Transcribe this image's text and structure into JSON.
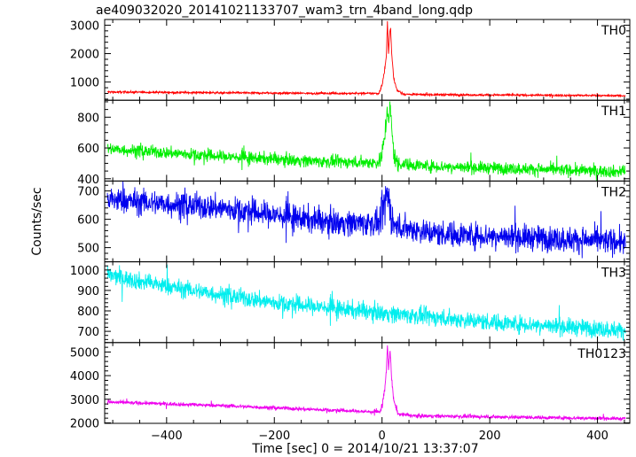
{
  "chart_data": {
    "type": "line",
    "title": "ae409032020_20141021133707_wam3_trn_4band_long.qdp",
    "xlabel": "Time [sec] 0 = 2014/10/21 13:37:07",
    "ylabel": "Counts/sec",
    "xlim": [
      -515,
      460
    ],
    "x_ticks": [
      "−400",
      "−200",
      "0",
      "200",
      "400"
    ],
    "x_tick_values": [
      -400,
      -200,
      0,
      200,
      400
    ],
    "grid": false,
    "panels": [
      {
        "name": "TH0",
        "color": "#ff0000",
        "ylim": [
          360,
          3200
        ],
        "y_ticks": [
          1000,
          2000,
          3000
        ],
        "baseline": [
          [
            -510,
            650
          ],
          [
            -100,
            600
          ],
          [
            0,
            600
          ],
          [
            60,
            560
          ],
          [
            450,
            520
          ]
        ],
        "noise": 25,
        "burst": [
          [
            -5,
            650
          ],
          [
            0,
            900
          ],
          [
            4,
            1300
          ],
          [
            8,
            1900
          ],
          [
            10,
            3150
          ],
          [
            12,
            2000
          ],
          [
            14,
            2600
          ],
          [
            16,
            2900
          ],
          [
            18,
            2000
          ],
          [
            22,
            1100
          ],
          [
            28,
            700
          ],
          [
            40,
            600
          ]
        ]
      },
      {
        "name": "TH1",
        "color": "#00ee00",
        "ylim": [
          385,
          910
        ],
        "y_ticks": [
          400,
          600,
          800
        ],
        "baseline": [
          [
            -510,
            595
          ],
          [
            -300,
            545
          ],
          [
            -100,
            510
          ],
          [
            0,
            505
          ],
          [
            100,
            480
          ],
          [
            450,
            445
          ]
        ],
        "noise": 28,
        "burst": [
          [
            -5,
            510
          ],
          [
            0,
            560
          ],
          [
            5,
            680
          ],
          [
            10,
            860
          ],
          [
            13,
            760
          ],
          [
            15,
            880
          ],
          [
            18,
            720
          ],
          [
            22,
            560
          ],
          [
            30,
            490
          ]
        ]
      },
      {
        "name": "TH2",
        "color": "#0000ee",
        "ylim": [
          450,
          735
        ],
        "y_ticks": [
          500,
          600,
          700
        ],
        "baseline": [
          [
            -510,
            670
          ],
          [
            -300,
            640
          ],
          [
            -100,
            590
          ],
          [
            0,
            585
          ],
          [
            100,
            550
          ],
          [
            450,
            520
          ]
        ],
        "noise": 32,
        "burst": [
          [
            -3,
            590
          ],
          [
            5,
            650
          ],
          [
            10,
            690
          ],
          [
            15,
            640
          ],
          [
            20,
            600
          ]
        ]
      },
      {
        "name": "TH3",
        "color": "#00eeee",
        "ylim": [
          645,
          1040
        ],
        "y_ticks": [
          700,
          800,
          900,
          1000
        ],
        "baseline": [
          [
            -510,
            975
          ],
          [
            -400,
            920
          ],
          [
            -200,
            840
          ],
          [
            0,
            790
          ],
          [
            200,
            745
          ],
          [
            450,
            705
          ]
        ],
        "noise": 30,
        "burst": []
      },
      {
        "name": "TH0123",
        "color": "#ee00ee",
        "ylim": [
          1980,
          5400
        ],
        "y_ticks": [
          2000,
          3000,
          4000,
          5000
        ],
        "baseline": [
          [
            -510,
            2880
          ],
          [
            -300,
            2730
          ],
          [
            0,
            2450
          ],
          [
            60,
            2300
          ],
          [
            450,
            2180
          ]
        ],
        "noise": 55,
        "burst": [
          [
            -5,
            2450
          ],
          [
            0,
            2700
          ],
          [
            5,
            3400
          ],
          [
            8,
            4200
          ],
          [
            10,
            5300
          ],
          [
            12,
            4300
          ],
          [
            15,
            5100
          ],
          [
            18,
            3800
          ],
          [
            22,
            2900
          ],
          [
            30,
            2400
          ]
        ]
      }
    ]
  }
}
